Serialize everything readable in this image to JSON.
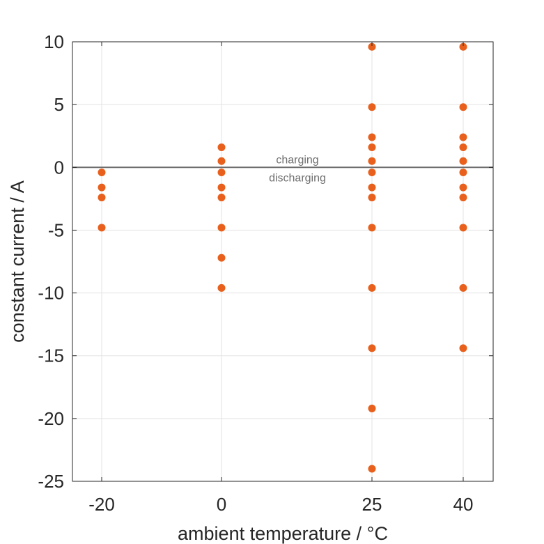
{
  "chart_data": {
    "type": "scatter",
    "xlabel": "ambient temperature / °C",
    "ylabel": "constant current / A",
    "x_ticks": [
      -20,
      0,
      25,
      40
    ],
    "y_ticks": [
      10,
      5,
      0,
      -5,
      -10,
      -15,
      -20,
      -25
    ],
    "ylim": [
      -25,
      10
    ],
    "grid": true,
    "reference_line": {
      "y": 0
    },
    "annotations": {
      "above": "charging",
      "below": "discharging"
    },
    "marker_color": "#E8601C",
    "series": [
      {
        "points": [
          {
            "x": -20,
            "y": -0.4
          },
          {
            "x": -20,
            "y": -1.6
          },
          {
            "x": -20,
            "y": -2.4
          },
          {
            "x": -20,
            "y": -4.8
          },
          {
            "x": 0,
            "y": 1.6
          },
          {
            "x": 0,
            "y": 0.5
          },
          {
            "x": 0,
            "y": -0.4
          },
          {
            "x": 0,
            "y": -1.6
          },
          {
            "x": 0,
            "y": -2.4
          },
          {
            "x": 0,
            "y": -4.8
          },
          {
            "x": 0,
            "y": -7.2
          },
          {
            "x": 0,
            "y": -9.6
          },
          {
            "x": 25,
            "y": 9.6
          },
          {
            "x": 25,
            "y": 4.8
          },
          {
            "x": 25,
            "y": 2.4
          },
          {
            "x": 25,
            "y": 1.6
          },
          {
            "x": 25,
            "y": 0.5
          },
          {
            "x": 25,
            "y": -0.4
          },
          {
            "x": 25,
            "y": -1.6
          },
          {
            "x": 25,
            "y": -2.4
          },
          {
            "x": 25,
            "y": -4.8
          },
          {
            "x": 25,
            "y": -9.6
          },
          {
            "x": 25,
            "y": -14.4
          },
          {
            "x": 25,
            "y": -19.2
          },
          {
            "x": 25,
            "y": -24
          },
          {
            "x": 40,
            "y": 9.6
          },
          {
            "x": 40,
            "y": 4.8
          },
          {
            "x": 40,
            "y": 2.4
          },
          {
            "x": 40,
            "y": 1.6
          },
          {
            "x": 40,
            "y": 0.5
          },
          {
            "x": 40,
            "y": -0.4
          },
          {
            "x": 40,
            "y": -1.6
          },
          {
            "x": 40,
            "y": -2.4
          },
          {
            "x": 40,
            "y": -4.8
          },
          {
            "x": 40,
            "y": -9.6
          },
          {
            "x": 40,
            "y": -14.4
          }
        ]
      }
    ]
  }
}
